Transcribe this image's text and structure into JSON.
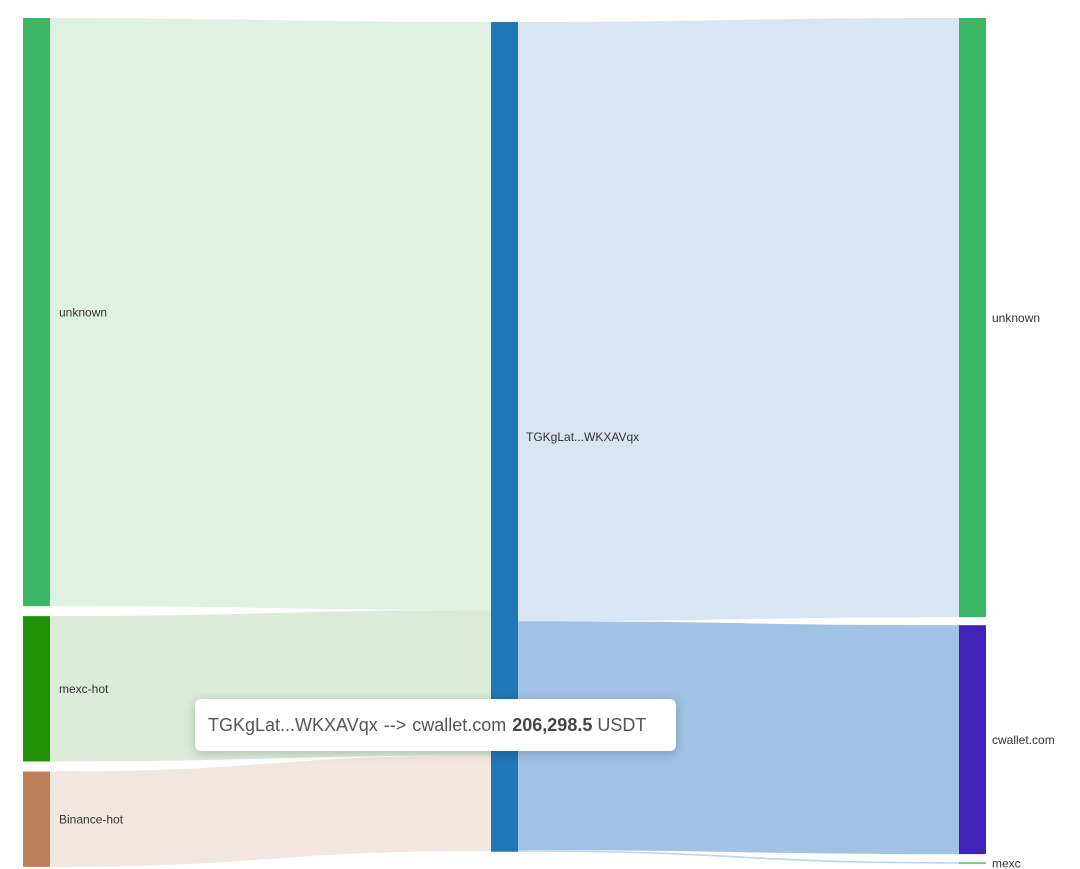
{
  "chart_data": {
    "type": "sankey",
    "nodes": [
      {
        "id": "in_unknown",
        "label": "unknown",
        "color": "#3cb765"
      },
      {
        "id": "in_mexc_hot",
        "label": "mexc-hot",
        "color": "#1f9305"
      },
      {
        "id": "in_binance_hot",
        "label": "Binance-hot",
        "color": "#bd8059"
      },
      {
        "id": "center",
        "label": "TGKgLat...WKXAVqx",
        "color": "#1f77b4"
      },
      {
        "id": "out_unknown",
        "label": "unknown",
        "color": "#3cb765"
      },
      {
        "id": "out_cwallet",
        "label": "cwallet.com",
        "color": "#4122b6"
      },
      {
        "id": "out_mexc",
        "label": "mexc",
        "color": "#6fd170"
      }
    ],
    "links": [
      {
        "source": "in_unknown",
        "target": "center",
        "value": 530000,
        "color": "#ddf0e2"
      },
      {
        "source": "in_mexc_hot",
        "target": "center",
        "value": 131000,
        "color": "#d8ead6"
      },
      {
        "source": "in_binance_hot",
        "target": "center",
        "value": 86000,
        "color": "#f0e6de"
      },
      {
        "source": "center",
        "target": "out_unknown",
        "value": 540000,
        "color": "#d6e4f1"
      },
      {
        "source": "center",
        "target": "out_cwallet",
        "value": 206298.5,
        "color": "#9bbfe2"
      },
      {
        "source": "center",
        "target": "out_mexc",
        "value": 1500,
        "color": "#bcd3ea"
      }
    ]
  },
  "tooltip": {
    "source": "TGKgLat...WKXAVqx",
    "arrow": "-->",
    "target": "cwallet.com",
    "amount": "206,298.5",
    "unit": "USDT"
  }
}
